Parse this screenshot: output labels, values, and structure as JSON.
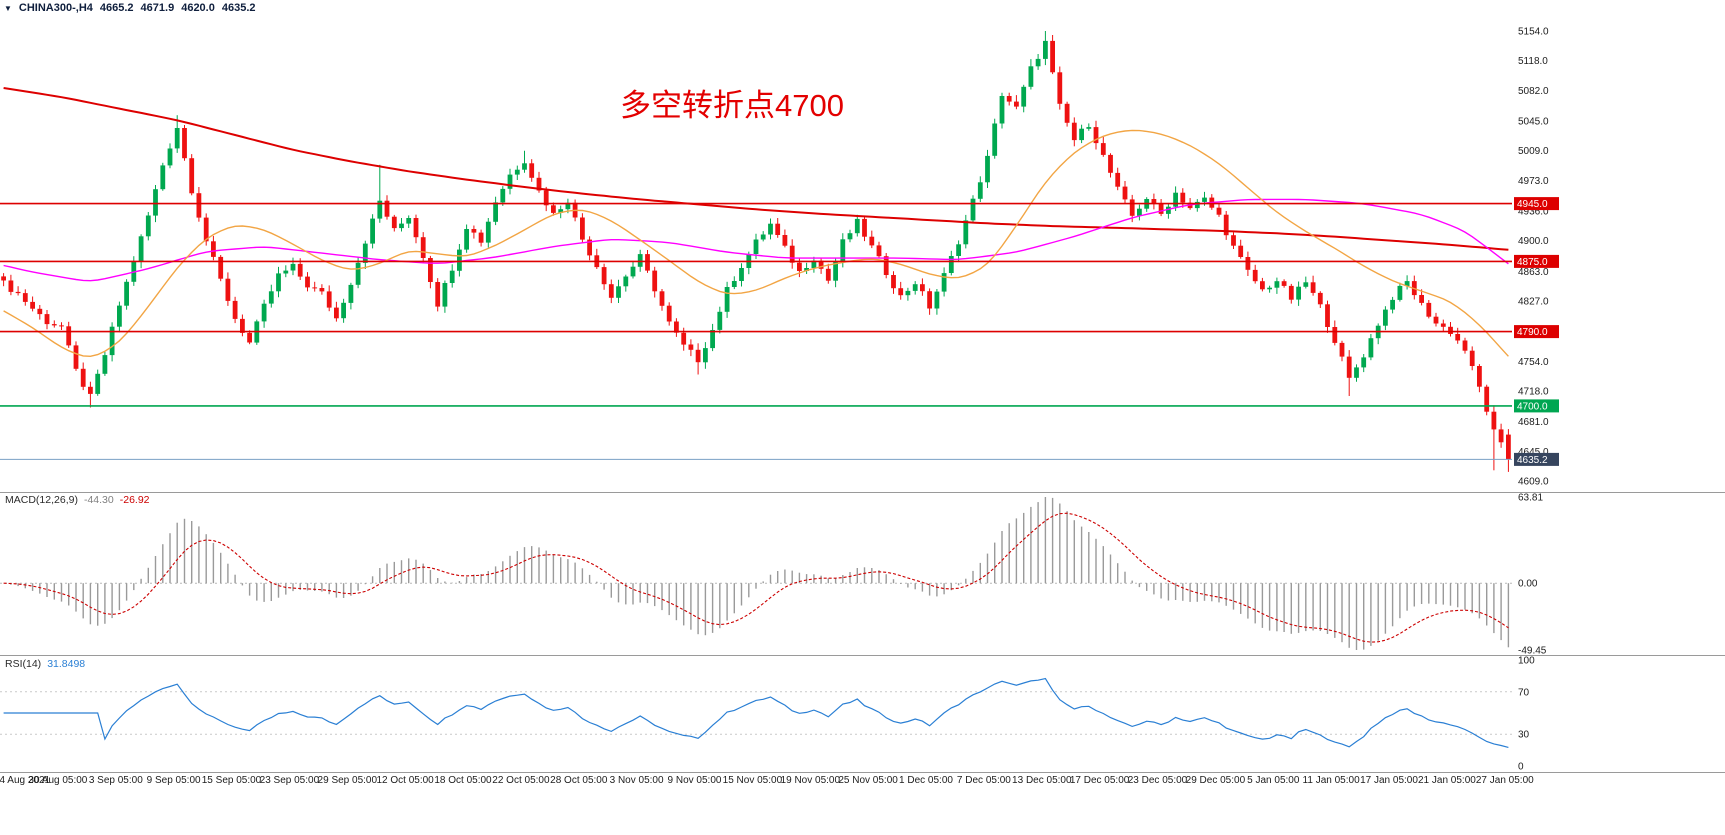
{
  "header": {
    "symbol": "CHINA300-,H4",
    "open": "4665.2",
    "high": "4671.9",
    "low": "4620.0",
    "close": "4635.2"
  },
  "annotation": {
    "text": "多空转折点4700",
    "color": "#e30000"
  },
  "macd": {
    "label": "MACD(12,26,9)",
    "value_main": "-44.30",
    "value_signal": "-26.92",
    "axis": [
      "63.81",
      "0.00",
      "-49.45"
    ],
    "axis_values": [
      63.81,
      0,
      -49.45
    ]
  },
  "rsi": {
    "label": "RSI(14)",
    "value": "31.8498",
    "axis": [
      "100",
      "70",
      "30",
      "0"
    ],
    "axis_values": [
      100,
      70,
      30,
      0
    ],
    "levels": [
      70,
      30
    ]
  },
  "axis": {
    "price_ticks": [
      5154.0,
      5118.0,
      5082.0,
      5045.0,
      5009.0,
      4973.0,
      4936.0,
      4900.0,
      4863.0,
      4827.0,
      4754.0,
      4718.0,
      4681.0,
      4645.0,
      4609.0
    ],
    "date_labels": [
      "24 Aug 2021",
      "30 Aug 05:00",
      "3 Sep 05:00",
      "9 Sep 05:00",
      "15 Sep 05:00",
      "23 Sep 05:00",
      "29 Sep 05:00",
      "12 Oct 05:00",
      "18 Oct 05:00",
      "22 Oct 05:00",
      "28 Oct 05:00",
      "3 Nov 05:00",
      "9 Nov 05:00",
      "15 Nov 05:00",
      "19 Nov 05:00",
      "25 Nov 05:00",
      "1 Dec 05:00",
      "7 Dec 05:00",
      "13 Dec 05:00",
      "17 Dec 05:00",
      "23 Dec 05:00",
      "29 Dec 05:00",
      "5 Jan 05:00",
      "11 Jan 05:00",
      "17 Jan 05:00",
      "21 Jan 05:00",
      "27 Jan 05:00"
    ]
  },
  "levels": [
    {
      "value": 4945.0,
      "label": "4945.0",
      "color": "#dd0000"
    },
    {
      "value": 4875.0,
      "label": "4875.0",
      "color": "#dd0000"
    },
    {
      "value": 4790.0,
      "label": "4790.0",
      "color": "#dd0000"
    },
    {
      "value": 4700.0,
      "label": "4700.0",
      "color": "#00a651"
    }
  ],
  "current_price": {
    "value": 4635.2,
    "label": "4635.2"
  },
  "colors": {
    "bull": "#00a84f",
    "bear": "#ee1111",
    "level_red": "#dd0000",
    "level_green": "#00a651",
    "bid_line": "#7aa0c4",
    "bid_badge": "#36455e",
    "macd_hist": "#9a9a9a",
    "macd_signal": "#cc0000",
    "rsi_line": "#2a7fd4",
    "separator": "#9a9a9a",
    "axis_text": "#1c1c1c"
  },
  "chart_data": {
    "type": "candlestick",
    "symbol": "CHINA300-",
    "timeframe": "H4",
    "title": "CHINA300- H4 with MACD(12,26,9) and RSI(14)",
    "ylim": [
      4609,
      5154
    ],
    "xrange": [
      "24 Aug 2021",
      "27 Jan 05:00"
    ],
    "bars": 209,
    "noise": 9,
    "close_path": [
      [
        0,
        4848
      ],
      [
        2,
        4836
      ],
      [
        4,
        4818
      ],
      [
        6,
        4802
      ],
      [
        8,
        4796
      ],
      [
        10,
        4742
      ],
      [
        12,
        4710
      ],
      [
        14,
        4762
      ],
      [
        16,
        4822
      ],
      [
        18,
        4876
      ],
      [
        20,
        4930
      ],
      [
        22,
        4992
      ],
      [
        24,
        5038
      ],
      [
        26,
        4962
      ],
      [
        28,
        4900
      ],
      [
        30,
        4852
      ],
      [
        32,
        4806
      ],
      [
        34,
        4776
      ],
      [
        36,
        4820
      ],
      [
        38,
        4858
      ],
      [
        40,
        4868
      ],
      [
        42,
        4846
      ],
      [
        44,
        4836
      ],
      [
        46,
        4806
      ],
      [
        48,
        4850
      ],
      [
        50,
        4900
      ],
      [
        52,
        4948
      ],
      [
        54,
        4912
      ],
      [
        56,
        4930
      ],
      [
        58,
        4882
      ],
      [
        60,
        4824
      ],
      [
        62,
        4868
      ],
      [
        64,
        4918
      ],
      [
        66,
        4900
      ],
      [
        68,
        4948
      ],
      [
        70,
        4980
      ],
      [
        72,
        4998
      ],
      [
        74,
        4960
      ],
      [
        76,
        4932
      ],
      [
        78,
        4950
      ],
      [
        80,
        4902
      ],
      [
        82,
        4870
      ],
      [
        84,
        4832
      ],
      [
        86,
        4858
      ],
      [
        88,
        4880
      ],
      [
        90,
        4842
      ],
      [
        92,
        4800
      ],
      [
        94,
        4772
      ],
      [
        96,
        4756
      ],
      [
        98,
        4792
      ],
      [
        100,
        4840
      ],
      [
        102,
        4870
      ],
      [
        104,
        4898
      ],
      [
        106,
        4920
      ],
      [
        108,
        4890
      ],
      [
        110,
        4862
      ],
      [
        112,
        4880
      ],
      [
        114,
        4852
      ],
      [
        116,
        4898
      ],
      [
        118,
        4922
      ],
      [
        120,
        4892
      ],
      [
        122,
        4862
      ],
      [
        124,
        4832
      ],
      [
        126,
        4850
      ],
      [
        128,
        4820
      ],
      [
        130,
        4858
      ],
      [
        132,
        4900
      ],
      [
        134,
        4948
      ],
      [
        136,
        5000
      ],
      [
        138,
        5078
      ],
      [
        140,
        5060
      ],
      [
        142,
        5108
      ],
      [
        144,
        5140
      ],
      [
        146,
        5062
      ],
      [
        148,
        5022
      ],
      [
        150,
        5042
      ],
      [
        152,
        5002
      ],
      [
        154,
        4962
      ],
      [
        156,
        4930
      ],
      [
        158,
        4952
      ],
      [
        160,
        4932
      ],
      [
        162,
        4958
      ],
      [
        164,
        4940
      ],
      [
        166,
        4950
      ],
      [
        168,
        4930
      ],
      [
        170,
        4892
      ],
      [
        172,
        4862
      ],
      [
        174,
        4840
      ],
      [
        176,
        4852
      ],
      [
        178,
        4830
      ],
      [
        180,
        4850
      ],
      [
        182,
        4820
      ],
      [
        184,
        4780
      ],
      [
        186,
        4732
      ],
      [
        188,
        4762
      ],
      [
        190,
        4800
      ],
      [
        192,
        4832
      ],
      [
        194,
        4850
      ],
      [
        196,
        4822
      ],
      [
        198,
        4800
      ],
      [
        200,
        4790
      ],
      [
        202,
        4768
      ],
      [
        204,
        4722
      ],
      [
        206,
        4668
      ],
      [
        208,
        4635.2
      ]
    ],
    "forced_last": {
      "open": 4665.2,
      "high": 4671.9,
      "low": 4620.0,
      "close": 4635.2
    },
    "forced_wicks": [
      {
        "bar": 12,
        "low": 4698
      },
      {
        "bar": 24,
        "high": 5052
      },
      {
        "bar": 52,
        "high": 4992
      },
      {
        "bar": 72,
        "high": 5009
      },
      {
        "bar": 96,
        "low": 4738
      },
      {
        "bar": 142,
        "high": 5120
      },
      {
        "bar": 144,
        "high": 5154
      },
      {
        "bar": 186,
        "low": 4712
      },
      {
        "bar": 206,
        "low": 4622
      }
    ],
    "moving_averages": [
      {
        "name": "slow-red",
        "color": "#dd0000",
        "width": 2,
        "path": [
          [
            0,
            5085
          ],
          [
            8,
            5074
          ],
          [
            16,
            5060
          ],
          [
            24,
            5046
          ],
          [
            32,
            5028
          ],
          [
            40,
            5010
          ],
          [
            48,
            4996
          ],
          [
            56,
            4984
          ],
          [
            64,
            4974
          ],
          [
            72,
            4965
          ],
          [
            80,
            4957
          ],
          [
            88,
            4950
          ],
          [
            96,
            4944
          ],
          [
            104,
            4938
          ],
          [
            112,
            4933
          ],
          [
            120,
            4929
          ],
          [
            128,
            4925
          ],
          [
            136,
            4921
          ],
          [
            144,
            4918
          ],
          [
            152,
            4916
          ],
          [
            160,
            4914
          ],
          [
            168,
            4912
          ],
          [
            176,
            4909
          ],
          [
            184,
            4905
          ],
          [
            192,
            4900
          ],
          [
            200,
            4895
          ],
          [
            208,
            4889
          ]
        ]
      },
      {
        "name": "medium-magenta",
        "color": "#ff00ff",
        "width": 1.4,
        "path": [
          [
            0,
            4870
          ],
          [
            4,
            4862
          ],
          [
            12,
            4850
          ],
          [
            20,
            4866
          ],
          [
            28,
            4887
          ],
          [
            36,
            4893
          ],
          [
            44,
            4885
          ],
          [
            52,
            4877
          ],
          [
            60,
            4872
          ],
          [
            68,
            4880
          ],
          [
            76,
            4893
          ],
          [
            84,
            4902
          ],
          [
            92,
            4898
          ],
          [
            100,
            4886
          ],
          [
            108,
            4879
          ],
          [
            116,
            4879
          ],
          [
            124,
            4879
          ],
          [
            132,
            4877
          ],
          [
            140,
            4886
          ],
          [
            148,
            4905
          ],
          [
            156,
            4928
          ],
          [
            164,
            4944
          ],
          [
            172,
            4950
          ],
          [
            180,
            4950
          ],
          [
            188,
            4945
          ],
          [
            196,
            4932
          ],
          [
            202,
            4912
          ],
          [
            208,
            4872
          ]
        ]
      },
      {
        "name": "fast-orange",
        "color": "#f2a544",
        "width": 1.4,
        "path": [
          [
            0,
            4815
          ],
          [
            4,
            4795
          ],
          [
            8,
            4770
          ],
          [
            12,
            4756
          ],
          [
            16,
            4776
          ],
          [
            20,
            4820
          ],
          [
            24,
            4868
          ],
          [
            28,
            4904
          ],
          [
            32,
            4920
          ],
          [
            36,
            4914
          ],
          [
            40,
            4896
          ],
          [
            44,
            4876
          ],
          [
            48,
            4863
          ],
          [
            52,
            4872
          ],
          [
            56,
            4889
          ],
          [
            60,
            4884
          ],
          [
            64,
            4880
          ],
          [
            68,
            4894
          ],
          [
            72,
            4913
          ],
          [
            76,
            4933
          ],
          [
            80,
            4939
          ],
          [
            84,
            4925
          ],
          [
            88,
            4901
          ],
          [
            92,
            4876
          ],
          [
            96,
            4850
          ],
          [
            100,
            4834
          ],
          [
            104,
            4839
          ],
          [
            108,
            4855
          ],
          [
            112,
            4867
          ],
          [
            116,
            4874
          ],
          [
            120,
            4879
          ],
          [
            124,
            4872
          ],
          [
            128,
            4859
          ],
          [
            132,
            4853
          ],
          [
            136,
            4869
          ],
          [
            140,
            4918
          ],
          [
            144,
            4972
          ],
          [
            148,
            5008
          ],
          [
            152,
            5028
          ],
          [
            156,
            5035
          ],
          [
            160,
            5030
          ],
          [
            164,
            5016
          ],
          [
            168,
            4994
          ],
          [
            172,
            4964
          ],
          [
            176,
            4934
          ],
          [
            180,
            4911
          ],
          [
            184,
            4891
          ],
          [
            188,
            4869
          ],
          [
            192,
            4851
          ],
          [
            196,
            4839
          ],
          [
            200,
            4827
          ],
          [
            204,
            4799
          ],
          [
            208,
            4760
          ]
        ]
      }
    ],
    "indicators": {
      "macd": {
        "fast": 12,
        "slow": 26,
        "signal": 9,
        "current_main": -44.3,
        "current_signal": -26.92,
        "axis_max": 63.81,
        "axis_min": -49.45
      },
      "rsi": {
        "period": 14,
        "current": 31.8498,
        "levels": [
          70,
          30
        ]
      }
    },
    "horizontal_lines": [
      4945.0,
      4875.0,
      4790.0,
      4700.0
    ],
    "current_price": 4635.2
  }
}
